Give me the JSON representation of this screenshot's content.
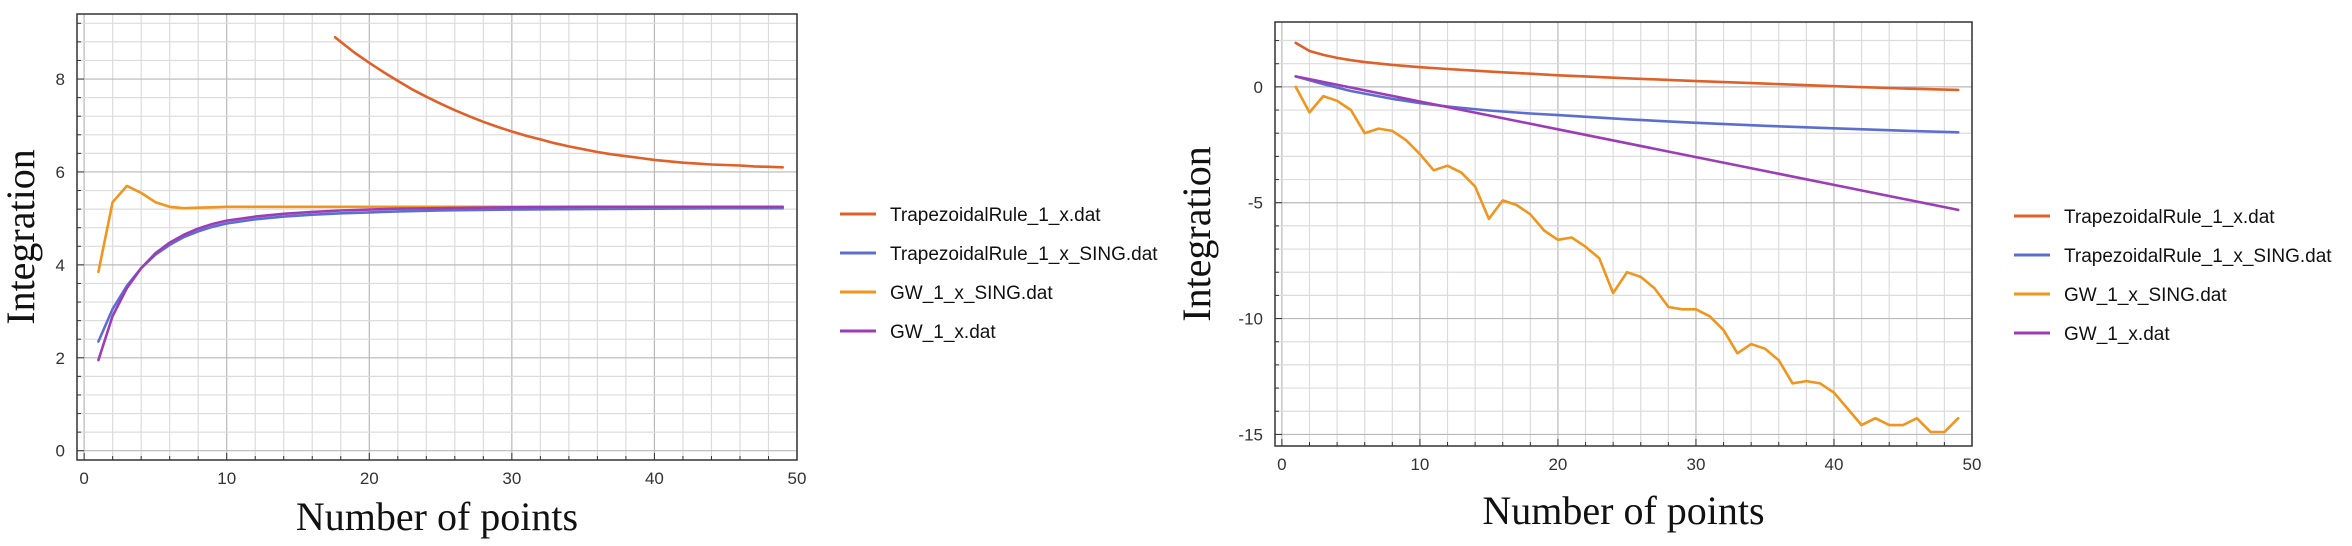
{
  "chart_data": [
    {
      "type": "line",
      "xlabel": "Number of points",
      "ylabel": "Integration",
      "xlim": [
        -0.5,
        50
      ],
      "ylim": [
        -0.2,
        9.4
      ],
      "xticks": [
        0,
        10,
        20,
        30,
        40,
        50
      ],
      "yticks": [
        0,
        2,
        4,
        6,
        8
      ],
      "grid": true,
      "legend_position": "right",
      "series": [
        {
          "name": "TrapezoidalRule_1_x.dat",
          "color": "#E0602A",
          "x": [
            17.6,
            18,
            19,
            20,
            21,
            22,
            23,
            24,
            25,
            26,
            27,
            28,
            29,
            30,
            31,
            32,
            33,
            34,
            35,
            36,
            37,
            38,
            39,
            40,
            41,
            42,
            43,
            44,
            45,
            46,
            47,
            48,
            49
          ],
          "y": [
            8.9,
            8.8,
            8.56,
            8.35,
            8.15,
            7.96,
            7.78,
            7.62,
            7.47,
            7.33,
            7.2,
            7.08,
            6.97,
            6.87,
            6.78,
            6.7,
            6.62,
            6.55,
            6.49,
            6.43,
            6.38,
            6.34,
            6.3,
            6.26,
            6.23,
            6.2,
            6.18,
            6.16,
            6.15,
            6.14,
            6.12,
            6.11,
            6.1
          ]
        },
        {
          "name": "TrapezoidalRule_1_x_SING.dat",
          "color": "#5C6FD0",
          "x": [
            1,
            2,
            3,
            4,
            5,
            6,
            7,
            8,
            9,
            10,
            12,
            14,
            16,
            18,
            20,
            22,
            25,
            30,
            35,
            40,
            45,
            49
          ],
          "y": [
            2.35,
            3.05,
            3.55,
            3.93,
            4.22,
            4.43,
            4.6,
            4.72,
            4.82,
            4.89,
            4.98,
            5.04,
            5.08,
            5.11,
            5.13,
            5.15,
            5.17,
            5.19,
            5.2,
            5.21,
            5.22,
            5.22
          ]
        },
        {
          "name": "GW_1_x_SING.dat",
          "color": "#F0951E",
          "x": [
            1,
            2,
            3,
            4,
            5,
            6,
            7,
            8,
            9,
            10,
            12,
            14,
            16,
            18,
            20,
            25,
            30,
            35,
            40,
            45,
            49
          ],
          "y": [
            3.85,
            5.35,
            5.7,
            5.55,
            5.35,
            5.25,
            5.22,
            5.23,
            5.24,
            5.25,
            5.25,
            5.25,
            5.25,
            5.25,
            5.25,
            5.25,
            5.25,
            5.25,
            5.25,
            5.25,
            5.25
          ]
        },
        {
          "name": "GW_1_x.dat",
          "color": "#9C3DB7",
          "x": [
            1,
            2,
            3,
            4,
            5,
            6,
            7,
            8,
            9,
            10,
            12,
            14,
            16,
            18,
            20,
            22,
            25,
            30,
            35,
            40,
            45,
            49
          ],
          "y": [
            1.95,
            2.9,
            3.5,
            3.93,
            4.25,
            4.48,
            4.65,
            4.78,
            4.88,
            4.95,
            5.04,
            5.1,
            5.14,
            5.17,
            5.19,
            5.21,
            5.22,
            5.24,
            5.25,
            5.25,
            5.25,
            5.25
          ]
        }
      ]
    },
    {
      "type": "line",
      "xlabel": "Number of points",
      "ylabel": "Integration",
      "xlim": [
        -0.5,
        50
      ],
      "ylim": [
        -15.5,
        2.8
      ],
      "xticks": [
        0,
        10,
        20,
        30,
        40,
        50
      ],
      "yticks": [
        -15,
        -10,
        -5,
        0
      ],
      "grid": true,
      "legend_position": "right",
      "series": [
        {
          "name": "TrapezoidalRule_1_x.dat",
          "color": "#E0602A",
          "x": [
            1,
            2,
            3,
            4,
            5,
            6,
            8,
            10,
            12,
            14,
            16,
            18,
            20,
            22,
            25,
            28,
            30,
            35,
            40,
            45,
            49
          ],
          "y": [
            1.9,
            1.55,
            1.38,
            1.25,
            1.15,
            1.07,
            0.95,
            0.85,
            0.77,
            0.7,
            0.63,
            0.57,
            0.5,
            0.45,
            0.37,
            0.3,
            0.25,
            0.14,
            0.03,
            -0.07,
            -0.13
          ]
        },
        {
          "name": "TrapezoidalRule_1_x_SING.dat",
          "color": "#5C6FD0",
          "x": [
            1,
            3,
            5,
            8,
            10,
            12,
            15,
            18,
            20,
            25,
            30,
            35,
            40,
            45,
            49
          ],
          "y": [
            0.45,
            0.12,
            -0.18,
            -0.52,
            -0.7,
            -0.85,
            -1.02,
            -1.15,
            -1.22,
            -1.4,
            -1.55,
            -1.68,
            -1.79,
            -1.89,
            -1.96
          ]
        },
        {
          "name": "GW_1_x_SING.dat",
          "color": "#F0951E",
          "x": [
            1,
            2,
            3,
            4,
            5,
            6,
            7,
            8,
            9,
            10,
            11,
            12,
            13,
            14,
            15,
            16,
            17,
            18,
            19,
            20,
            21,
            22,
            23,
            24,
            25,
            26,
            27,
            28,
            29,
            30,
            31,
            32,
            33,
            34,
            35,
            36,
            37,
            38,
            39,
            40,
            41,
            42,
            43,
            44,
            45,
            46,
            47,
            48,
            49
          ],
          "y": [
            0.0,
            -1.1,
            -0.4,
            -0.6,
            -1.0,
            -2.0,
            -1.8,
            -1.9,
            -2.3,
            -2.9,
            -3.6,
            -3.4,
            -3.7,
            -4.3,
            -5.7,
            -4.9,
            -5.1,
            -5.5,
            -6.2,
            -6.6,
            -6.5,
            -6.9,
            -7.4,
            -8.9,
            -8.0,
            -8.2,
            -8.7,
            -9.5,
            -9.6,
            -9.6,
            -9.9,
            -10.5,
            -11.5,
            -11.1,
            -11.3,
            -11.8,
            -12.8,
            -12.7,
            -12.8,
            -13.2,
            -13.9,
            -14.6,
            -14.3,
            -14.6,
            -14.6,
            -14.3,
            -14.9,
            -14.9,
            -14.3
          ]
        },
        {
          "name": "GW_1_x.dat",
          "color": "#9C3DB7",
          "x": [
            1,
            10,
            20,
            30,
            40,
            49
          ],
          "y": [
            0.45,
            -0.63,
            -1.83,
            -3.03,
            -4.23,
            -5.31
          ]
        }
      ]
    }
  ]
}
